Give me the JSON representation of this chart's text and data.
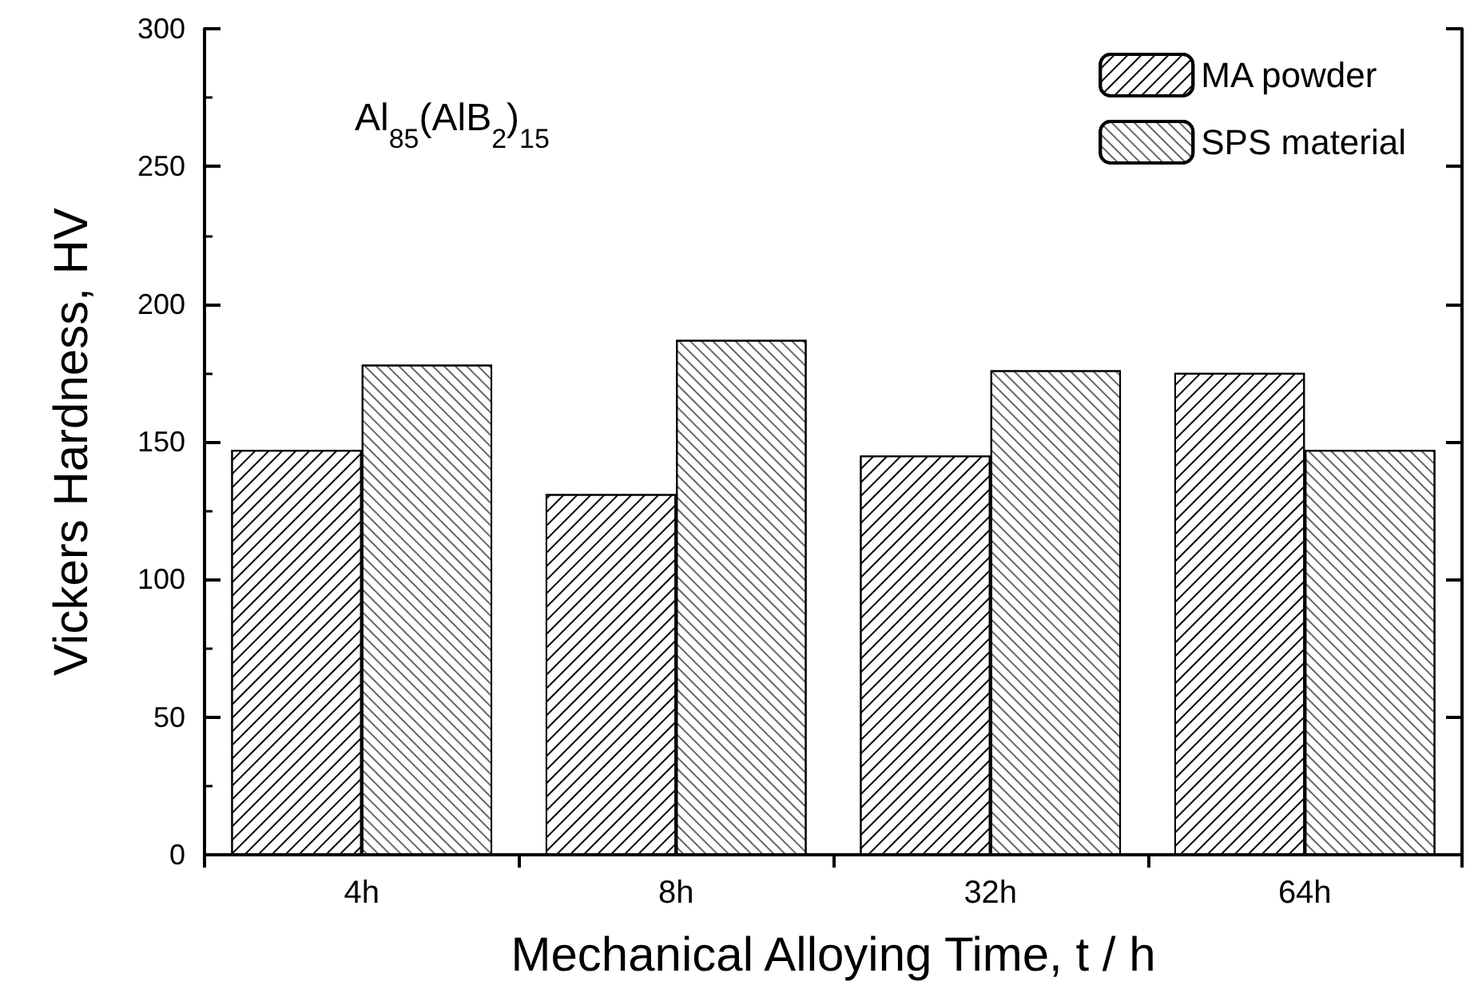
{
  "chart_data": {
    "type": "bar",
    "xlabel": "Mechanical Alloying Time, t / h",
    "ylabel": "Vickers Hardness, HV",
    "annotations": [
      "Al$_{85}$(AlB$_{2}$)$_{15}$"
    ],
    "categories": [
      "4h",
      "8h",
      "32h",
      "64h"
    ],
    "series": [
      {
        "name": "MA powder",
        "color": "#ffffff",
        "values": [
          147,
          131,
          145,
          175
        ]
      },
      {
        "name": "SPS material",
        "color": "#ffffff",
        "values": [
          178,
          187,
          176,
          147
        ]
      }
    ],
    "ylim": [
      0,
      300
    ],
    "yticks": [
      0,
      50,
      100,
      150,
      200,
      250,
      300
    ],
    "grid": false,
    "legend": "top right"
  }
}
